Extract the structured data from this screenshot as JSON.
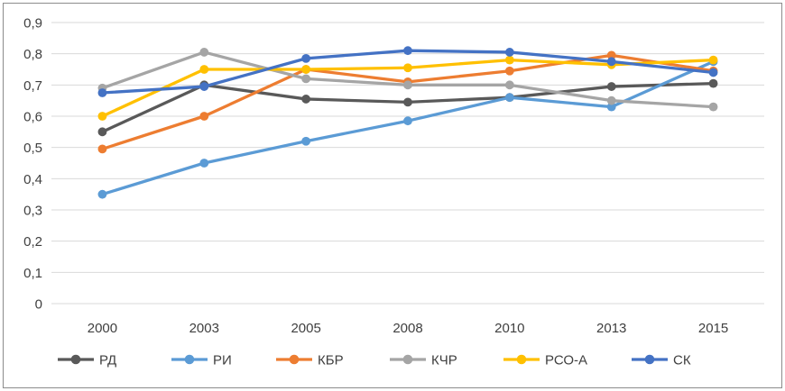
{
  "frame": {
    "background_color": "#ffffff",
    "border_color": "#8c8c8c"
  },
  "chart_data": {
    "type": "line",
    "title": "",
    "xlabel": "",
    "ylabel": "",
    "categories": [
      "2000",
      "2003",
      "2005",
      "2008",
      "2010",
      "2013",
      "2015"
    ],
    "series": [
      {
        "name": "РД",
        "color": "#595959",
        "values": [
          0.55,
          0.7,
          0.655,
          0.645,
          0.66,
          0.695,
          0.705
        ]
      },
      {
        "name": "РИ",
        "color": "#5B9BD5",
        "values": [
          0.35,
          0.45,
          0.52,
          0.585,
          0.66,
          0.63,
          0.775
        ]
      },
      {
        "name": "КБР",
        "color": "#ED7D31",
        "values": [
          0.495,
          0.6,
          0.75,
          0.71,
          0.745,
          0.795,
          0.745
        ]
      },
      {
        "name": "КЧР",
        "color": "#A5A5A5",
        "values": [
          0.69,
          0.805,
          0.72,
          0.7,
          0.7,
          0.65,
          0.63
        ]
      },
      {
        "name": "РСО-А",
        "color": "#FFC000",
        "values": [
          0.6,
          0.75,
          0.75,
          0.755,
          0.78,
          0.765,
          0.78
        ]
      },
      {
        "name": "СК",
        "color": "#4472C4",
        "values": [
          0.675,
          0.695,
          0.785,
          0.81,
          0.805,
          0.775,
          0.74
        ]
      }
    ],
    "ylim": [
      0,
      0.9
    ],
    "ytick_step": 0.1,
    "ytick_labels": [
      "0",
      "0,1",
      "0,2",
      "0,3",
      "0,4",
      "0,5",
      "0,6",
      "0,7",
      "0,8",
      "0,9"
    ],
    "decimal_separator": ",",
    "grid": true,
    "gridline_color": "#d9d9d9",
    "tick_label_color": "#3f3f3f",
    "legend_position": "bottom",
    "legend_labels": [
      "РД",
      "РИ",
      "КБР",
      "КЧР",
      "РСО-А",
      "СК"
    ]
  }
}
